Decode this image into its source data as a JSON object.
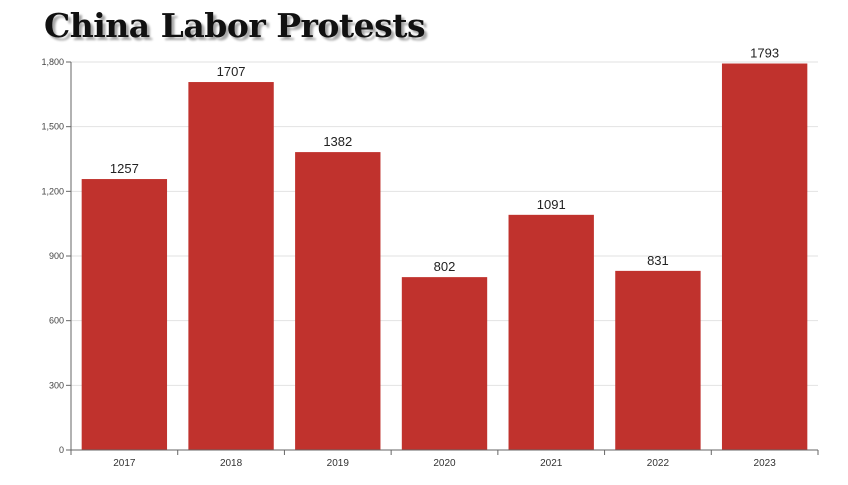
{
  "chart_data": {
    "type": "bar",
    "title": "China Labor Protests",
    "xlabel": "",
    "ylabel": "",
    "categories": [
      "2017",
      "2018",
      "2019",
      "2020",
      "2021",
      "2022",
      "2023"
    ],
    "values": [
      1257,
      1707,
      1382,
      802,
      1091,
      831,
      1793
    ],
    "data_labels": [
      "1257",
      "1707",
      "1382",
      "802",
      "1091",
      "831",
      "1793"
    ],
    "yticks": [
      0,
      300,
      600,
      900,
      1200,
      1500,
      1800
    ],
    "ytick_labels": [
      "0",
      "300",
      "600",
      "900",
      "1,200",
      "1,500",
      "1,800"
    ],
    "ylim": [
      0,
      1800
    ],
    "grid": true,
    "legend": "none",
    "bar_color": "#c0322d"
  }
}
